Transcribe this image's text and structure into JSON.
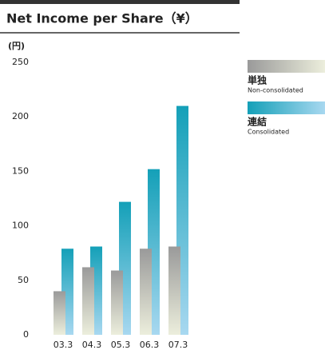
{
  "chart_data": {
    "type": "bar",
    "title": "Net Income per Share（¥）",
    "unit_label": "(円)",
    "categories": [
      "03.3",
      "04.3",
      "05.3",
      "06.3",
      "07.3"
    ],
    "series": [
      {
        "name": "単独",
        "name_en": "Non-consolidated",
        "color": "#9a9a9a",
        "values": [
          40,
          62,
          59,
          79,
          81
        ]
      },
      {
        "name": "連結",
        "name_en": "Consolidated",
        "color": "#14a0b8",
        "values": [
          79,
          81,
          122,
          152,
          210
        ]
      }
    ],
    "ylim": [
      0,
      250
    ],
    "yticks": [
      0,
      50,
      100,
      150,
      200,
      250
    ],
    "grid": false
  }
}
